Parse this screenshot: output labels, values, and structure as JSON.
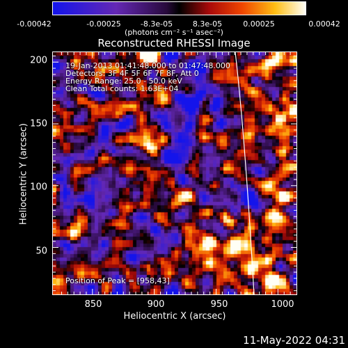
{
  "colorbar": {
    "tick_labels": [
      "-0.00042",
      "-0.00025",
      "-8.3e-05",
      "8.3e-05",
      "0.00025",
      "0.00042"
    ],
    "units_label": "(photons cm⁻² s⁻¹ asec⁻²)"
  },
  "title": "Reconstructed RHESSI Image",
  "annotations": {
    "time_range": "19-Jan-2013 01:41:48.000 to 01:47:48.000",
    "detectors": "Detectors: 3F 4F 5F 6F 7F 8F, Att 0",
    "energy_range": "Energy Range: 25.0 - 50.0 keV",
    "algorithm": "Clean     Total counts: 1.63E+04",
    "peak": "Position of Peak = [958,43]"
  },
  "axes": {
    "xlabel": "Heliocentric X (arcsec)",
    "ylabel": "Heliocentric Y (arcsec)",
    "x_ticks": [
      "850",
      "900",
      "950",
      "1000"
    ],
    "y_ticks": [
      "50",
      "100",
      "150",
      "200"
    ],
    "x_range": [
      818,
      1015
    ],
    "y_range": [
      12,
      208
    ]
  },
  "footer_date": "11-May-2022 04:31",
  "colors": {
    "background": "#000000",
    "axis": "#ffffff"
  }
}
